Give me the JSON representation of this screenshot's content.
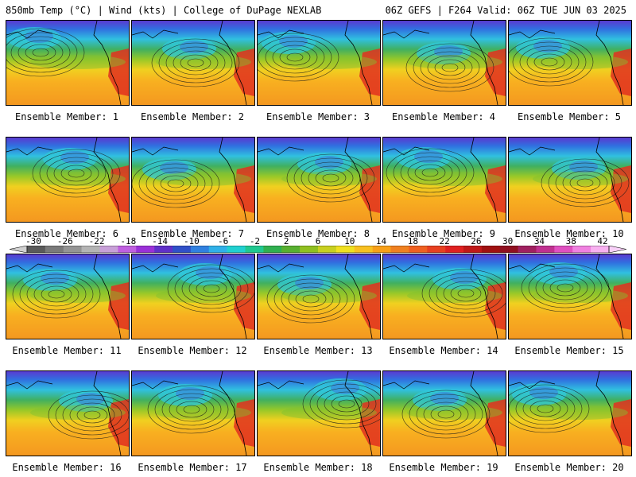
{
  "header": {
    "left_title": "850mb Temp (°C) | Wind (kts) | College of DuPage NEXLAB",
    "right_title": "06Z GEFS | F264 Valid: 06Z TUE JUN 03 2025"
  },
  "colorbar": {
    "tick_labels": [
      "-30",
      "-26",
      "-22",
      "-18",
      "-14",
      "-10",
      "-6",
      "-2",
      "2",
      "6",
      "10",
      "14",
      "18",
      "22",
      "26",
      "30",
      "34",
      "38",
      "42"
    ],
    "colors": [
      "#5a5a5a",
      "#7a7a7a",
      "#949494",
      "#b4b4b4",
      "#c8a0d8",
      "#c060e0",
      "#9a30d8",
      "#6030c8",
      "#3050c8",
      "#3080e0",
      "#30b0e8",
      "#20d0d0",
      "#20c890",
      "#30b050",
      "#58b030",
      "#90c020",
      "#c8d020",
      "#f0e020",
      "#f8c020",
      "#f8a018",
      "#f08020",
      "#f06020",
      "#e84020",
      "#e02020",
      "#c01818",
      "#a01010",
      "#901020",
      "#a02060",
      "#c03090",
      "#e050c0",
      "#f080e0",
      "#f8b0f0"
    ]
  },
  "panels": [
    {
      "label": "Ensemble Member: 1"
    },
    {
      "label": "Ensemble Member: 2"
    },
    {
      "label": "Ensemble Member: 3"
    },
    {
      "label": "Ensemble Member: 4"
    },
    {
      "label": "Ensemble Member: 5"
    },
    {
      "label": "Ensemble Member: 6"
    },
    {
      "label": "Ensemble Member: 7"
    },
    {
      "label": "Ensemble Member: 8"
    },
    {
      "label": "Ensemble Member: 9"
    },
    {
      "label": "Ensemble Member: 10"
    },
    {
      "label": "Ensemble Member: 11"
    },
    {
      "label": "Ensemble Member: 12"
    },
    {
      "label": "Ensemble Member: 13"
    },
    {
      "label": "Ensemble Member: 14"
    },
    {
      "label": "Ensemble Member: 15"
    },
    {
      "label": "Ensemble Member: 16"
    },
    {
      "label": "Ensemble Member: 17"
    },
    {
      "label": "Ensemble Member: 18"
    },
    {
      "label": "Ensemble Member: 19"
    },
    {
      "label": "Ensemble Member: 20"
    }
  ]
}
